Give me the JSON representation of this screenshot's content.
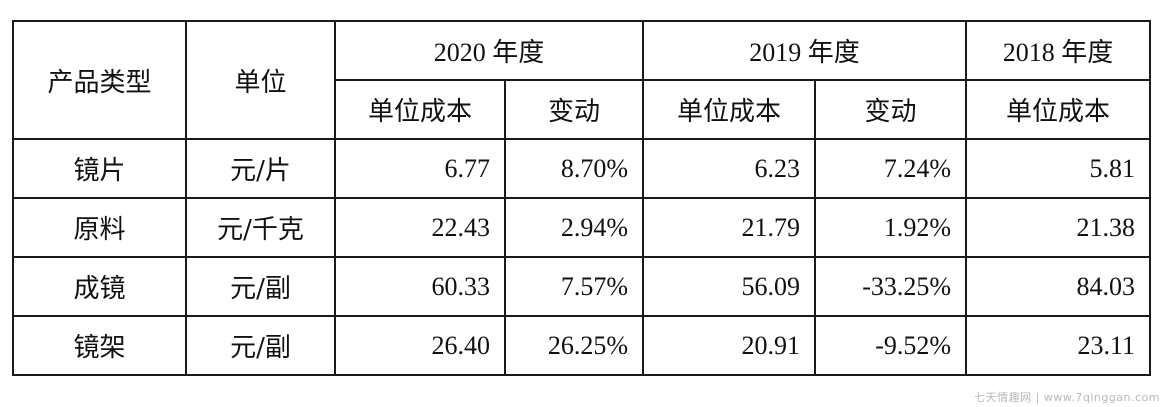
{
  "table": {
    "header": {
      "product_type": "产品类型",
      "unit": "单位",
      "years": [
        {
          "label": "2020 年度",
          "sub": [
            "单位成本",
            "变动"
          ]
        },
        {
          "label": "2019 年度",
          "sub": [
            "单位成本",
            "变动"
          ]
        },
        {
          "label": "2018 年度",
          "sub": [
            "单位成本"
          ]
        }
      ]
    },
    "rows": [
      {
        "product": "镜片",
        "unit": "元/片",
        "cost_2020": "6.77",
        "change_2020": "8.70%",
        "cost_2019": "6.23",
        "change_2019": "7.24%",
        "cost_2018": "5.81"
      },
      {
        "product": "原料",
        "unit": "元/千克",
        "cost_2020": "22.43",
        "change_2020": "2.94%",
        "cost_2019": "21.79",
        "change_2019": "1.92%",
        "cost_2018": "21.38"
      },
      {
        "product": "成镜",
        "unit": "元/副",
        "cost_2020": "60.33",
        "change_2020": "7.57%",
        "cost_2019": "56.09",
        "change_2019": "-33.25%",
        "cost_2018": "84.03"
      },
      {
        "product": "镜架",
        "unit": "元/副",
        "cost_2020": "26.40",
        "change_2020": "26.25%",
        "cost_2019": "20.91",
        "change_2019": "-9.52%",
        "cost_2018": "23.11"
      }
    ]
  },
  "watermark": "七天情趣网 | www.7qinggan.com"
}
